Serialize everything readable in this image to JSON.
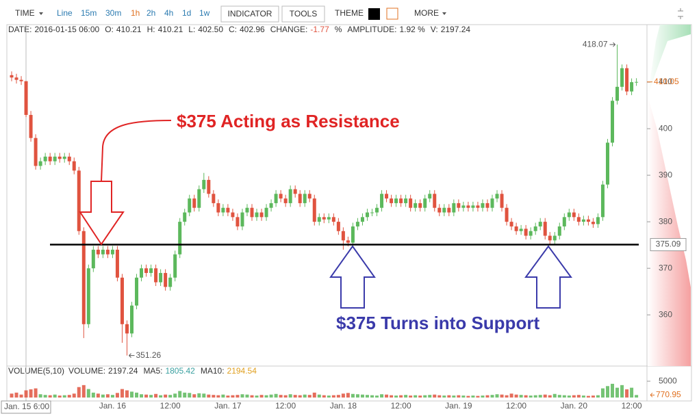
{
  "toolbar": {
    "time": "TIME",
    "intervals": [
      "Line",
      "15m",
      "30m",
      "1h",
      "2h",
      "4h",
      "1d",
      "1w"
    ],
    "active": 3,
    "buttons": [
      "INDICATOR",
      "TOOLS"
    ],
    "theme": "THEME",
    "more": "MORE"
  },
  "info": [
    {
      "label": "DATE:",
      "value": "2016-01-15  06:00"
    },
    {
      "label": "O:",
      "value": "410.21"
    },
    {
      "label": "H:",
      "value": "410.21"
    },
    {
      "label": "L:",
      "value": "402.50"
    },
    {
      "label": "C:",
      "value": "402.96"
    },
    {
      "label": "CHANGE:",
      "value": "-1.77"
    },
    {
      "label": "%",
      "value": ""
    },
    {
      "label": "AMPLITUDE:",
      "value": "1.92 %"
    },
    {
      "label": "V:",
      "value": "2197.24"
    }
  ],
  "chart_data": {
    "type": "candlestick",
    "categories": [
      null,
      null,
      null,
      null,
      null,
      null,
      null,
      null,
      null,
      null,
      null,
      null,
      null,
      null,
      null,
      null,
      null,
      null,
      null,
      null,
      null,
      "Jan. 16",
      null,
      null,
      null,
      null,
      null,
      null,
      null,
      null,
      null,
      null,
      null,
      "12:00",
      null,
      null,
      null,
      null,
      null,
      null,
      null,
      null,
      null,
      null,
      null,
      "Jan. 17",
      null,
      null,
      null,
      null,
      null,
      null,
      null,
      null,
      null,
      null,
      null,
      "12:00",
      null,
      null,
      null,
      null,
      null,
      null,
      null,
      null,
      null,
      null,
      null,
      "Jan. 18",
      null,
      null,
      null,
      null,
      null,
      null,
      null,
      null,
      null,
      null,
      null,
      "12:00",
      null,
      null,
      null,
      null,
      null,
      null,
      null,
      null,
      null,
      null,
      null,
      "Jan. 19",
      null,
      null,
      null,
      null,
      null,
      null,
      null,
      null,
      null,
      null,
      null,
      "12:00",
      null,
      null,
      null,
      null,
      null,
      null,
      null,
      null,
      null,
      null,
      null,
      "Jan. 20",
      null,
      null,
      null,
      null,
      null,
      null,
      null,
      null,
      null,
      null,
      null,
      "12:00",
      null
    ],
    "open": [
      411.5,
      411,
      410.5,
      410.21,
      402.96,
      398,
      392,
      393,
      394,
      393,
      394,
      393.5,
      394,
      393,
      391,
      378,
      358,
      370,
      374,
      373,
      374,
      373,
      374,
      368,
      358,
      356,
      362,
      368,
      370,
      369,
      370,
      367,
      369,
      366,
      368,
      373,
      380,
      382,
      385,
      383,
      387,
      389,
      386,
      384,
      382,
      383,
      382,
      381,
      379,
      382,
      383,
      381,
      382,
      381,
      383,
      384,
      386,
      385,
      384,
      387,
      386,
      384,
      386,
      385,
      380,
      381,
      380.5,
      381,
      380,
      378,
      376,
      375.5,
      379,
      380,
      381,
      382,
      382,
      383,
      386,
      385,
      384,
      385,
      384,
      385,
      383,
      384,
      383,
      385,
      386,
      383,
      382,
      383,
      382,
      384,
      383,
      383.5,
      383,
      383.5,
      383,
      384,
      383,
      385,
      386,
      383,
      380,
      379,
      378,
      378.5,
      377,
      378,
      379,
      380,
      377,
      376,
      377,
      379,
      381,
      382,
      381,
      380,
      380.5,
      380,
      379.5,
      381,
      388,
      397,
      406,
      409,
      413,
      408,
      410
    ],
    "high": [
      412.3,
      411.8,
      411.3,
      410.21,
      403.8,
      398.8,
      393.8,
      394.8,
      394.8,
      394.8,
      394.8,
      394.8,
      394.8,
      393.8,
      391.8,
      378.8,
      370.8,
      374.8,
      374.8,
      374.8,
      374.8,
      374.8,
      374.8,
      368.8,
      358.8,
      362.8,
      368.8,
      370.8,
      370.8,
      370.8,
      370.8,
      369.8,
      369.8,
      368.8,
      373.8,
      380.8,
      382.8,
      385.8,
      385.8,
      387.8,
      390.5,
      389.8,
      386.8,
      384.8,
      383.8,
      383.8,
      382.8,
      381.8,
      382.8,
      383.8,
      383.8,
      382.8,
      382.8,
      383.8,
      384.8,
      386.8,
      386.8,
      385.8,
      387.8,
      387.8,
      386.8,
      386.8,
      386.8,
      385.8,
      381.8,
      381.8,
      381.8,
      381.8,
      380.8,
      378.8,
      376.8,
      379.8,
      380.8,
      381.8,
      382.8,
      382.8,
      383.8,
      386.8,
      386.8,
      385.8,
      385.8,
      385.8,
      385.8,
      385.8,
      384.8,
      384.8,
      385.8,
      386.8,
      386.8,
      383.8,
      383.8,
      383.8,
      384.8,
      384.8,
      384.3,
      384.3,
      384.3,
      384.3,
      384.8,
      384.8,
      385.8,
      386.8,
      386.8,
      383.8,
      380.8,
      379.8,
      379.3,
      379.3,
      378.8,
      379.8,
      380.8,
      380.8,
      377.8,
      377.8,
      379.8,
      381.8,
      382.8,
      382.8,
      381.8,
      381.3,
      381.3,
      380.8,
      381.8,
      388.8,
      397.8,
      406.8,
      418.07,
      413.8,
      413.8,
      410.8,
      410.85
    ],
    "low": [
      410.2,
      409.7,
      409.4,
      402.5,
      397.2,
      391.2,
      391.2,
      392.2,
      392.2,
      392.2,
      392.7,
      392.7,
      392.2,
      390.2,
      377.2,
      355,
      357.2,
      369.2,
      372.2,
      372.2,
      372.2,
      372.2,
      367.2,
      354,
      351.26,
      355.2,
      361.2,
      367.2,
      368.2,
      368.2,
      366.2,
      366.2,
      365.2,
      365.2,
      367.2,
      372.2,
      379.2,
      381.2,
      382.2,
      382.2,
      386.2,
      385.2,
      383.2,
      381.2,
      381.2,
      381.2,
      380.2,
      378.2,
      378.2,
      381.2,
      380.2,
      380.2,
      380.2,
      380.2,
      382.2,
      383.2,
      384.2,
      383.2,
      383.2,
      385.2,
      383.2,
      383.2,
      384.2,
      379.2,
      379.2,
      379.7,
      379.7,
      379.2,
      377.2,
      374,
      374.7,
      374.7,
      378.2,
      379.2,
      380.2,
      381.2,
      381.2,
      382.2,
      384.2,
      383.2,
      383.2,
      383.2,
      383.2,
      382.2,
      382.2,
      382.2,
      382.2,
      384.2,
      382.2,
      381.2,
      381.2,
      381.2,
      381.2,
      382.2,
      382.2,
      382.2,
      382.2,
      382.2,
      382.2,
      382.2,
      382.2,
      384.2,
      382.2,
      379.2,
      378.2,
      377.2,
      377.2,
      376.2,
      376.2,
      377.2,
      378.2,
      376.2,
      375.2,
      375.2,
      376.2,
      378.2,
      380.2,
      380.2,
      379.2,
      379.2,
      379.2,
      378.7,
      378.7,
      380.2,
      387.2,
      396.2,
      405.2,
      408.2,
      407.2,
      407.2,
      409.2
    ],
    "close": [
      411,
      410.5,
      410.2,
      402.96,
      398,
      392,
      393,
      394,
      393,
      394,
      393.5,
      394,
      393,
      391,
      378,
      358,
      370,
      374,
      373,
      374,
      373,
      374,
      368,
      358,
      356,
      362,
      368,
      370,
      369,
      370,
      367,
      369,
      366,
      368,
      373,
      380,
      382,
      385,
      383,
      387,
      389,
      386,
      384,
      382,
      383,
      382,
      381,
      379,
      382,
      383,
      381,
      382,
      381,
      383,
      384,
      386,
      385,
      384,
      387,
      386,
      384,
      386,
      385,
      380,
      381,
      380.5,
      381,
      380,
      378,
      376,
      375.5,
      379,
      380,
      381,
      382,
      382,
      383,
      386,
      385,
      384,
      385,
      384,
      385,
      383,
      384,
      383,
      385,
      386,
      383,
      382,
      383,
      382,
      384,
      383,
      383.5,
      383,
      383.5,
      383,
      384,
      383,
      385,
      386,
      383,
      380,
      379,
      378,
      378.5,
      377,
      378,
      379,
      380,
      377,
      376,
      377,
      379,
      381,
      382,
      381,
      380,
      380.5,
      380,
      379.5,
      381,
      388,
      397,
      406,
      409,
      413,
      408,
      410,
      410.05
    ],
    "up_color": "#5cb85c",
    "down_color": "#e0533f",
    "last_color": "#e07020",
    "ylim": [
      349,
      420.3
    ],
    "yticks": [
      360,
      370,
      380,
      390,
      400,
      410
    ],
    "crosshair": {
      "x": "Jan. 15  6:00",
      "y": 375.09
    },
    "annotations": [
      {
        "text": "$375 Acting as Resistance",
        "color": "#e02424"
      },
      {
        "text": "$375 Turns into Support",
        "color": "#3a3aaa"
      }
    ],
    "volume": {
      "title": "VOLUME(5,10)",
      "label": "VOLUME:",
      "ma": [
        {
          "name": "MA5:",
          "value": "1805.42",
          "color": "#3aa0a0"
        },
        {
          "name": "MA10:",
          "value": "2194.54",
          "color": "#e0a020"
        }
      ],
      "values": [
        1200,
        1500,
        900,
        2197.24,
        2500,
        2800,
        1000,
        800,
        700,
        900,
        600,
        700,
        800,
        1200,
        3200,
        3800,
        2600,
        1500,
        1200,
        900,
        1000,
        800,
        1400,
        2600,
        2200,
        1800,
        1500,
        1000,
        900,
        800,
        1100,
        700,
        900,
        800,
        1200,
        2000,
        1500,
        1400,
        1000,
        1300,
        1200,
        900,
        800,
        700,
        900,
        600,
        700,
        800,
        1000,
        900,
        700,
        600,
        800,
        700,
        900,
        1100,
        800,
        700,
        1000,
        800,
        700,
        900,
        800,
        1500,
        900,
        700,
        600,
        700,
        800,
        1200,
        1400,
        1100,
        1000,
        900,
        800,
        700,
        600,
        1000,
        900,
        700,
        600,
        700,
        800,
        600,
        700,
        600,
        700,
        800,
        900,
        700,
        600,
        700,
        600,
        700,
        600,
        500,
        600,
        500,
        600,
        700,
        800,
        1000,
        900,
        700,
        1200,
        900,
        800,
        700,
        600,
        700,
        800,
        900,
        700,
        1100,
        800,
        700,
        600,
        700,
        800,
        600,
        500,
        600,
        700,
        2800,
        3500,
        4200,
        3000,
        3800,
        2500,
        3000,
        770.95
      ],
      "ylim": [
        0,
        9000
      ],
      "yticks": [
        5000
      ]
    }
  }
}
